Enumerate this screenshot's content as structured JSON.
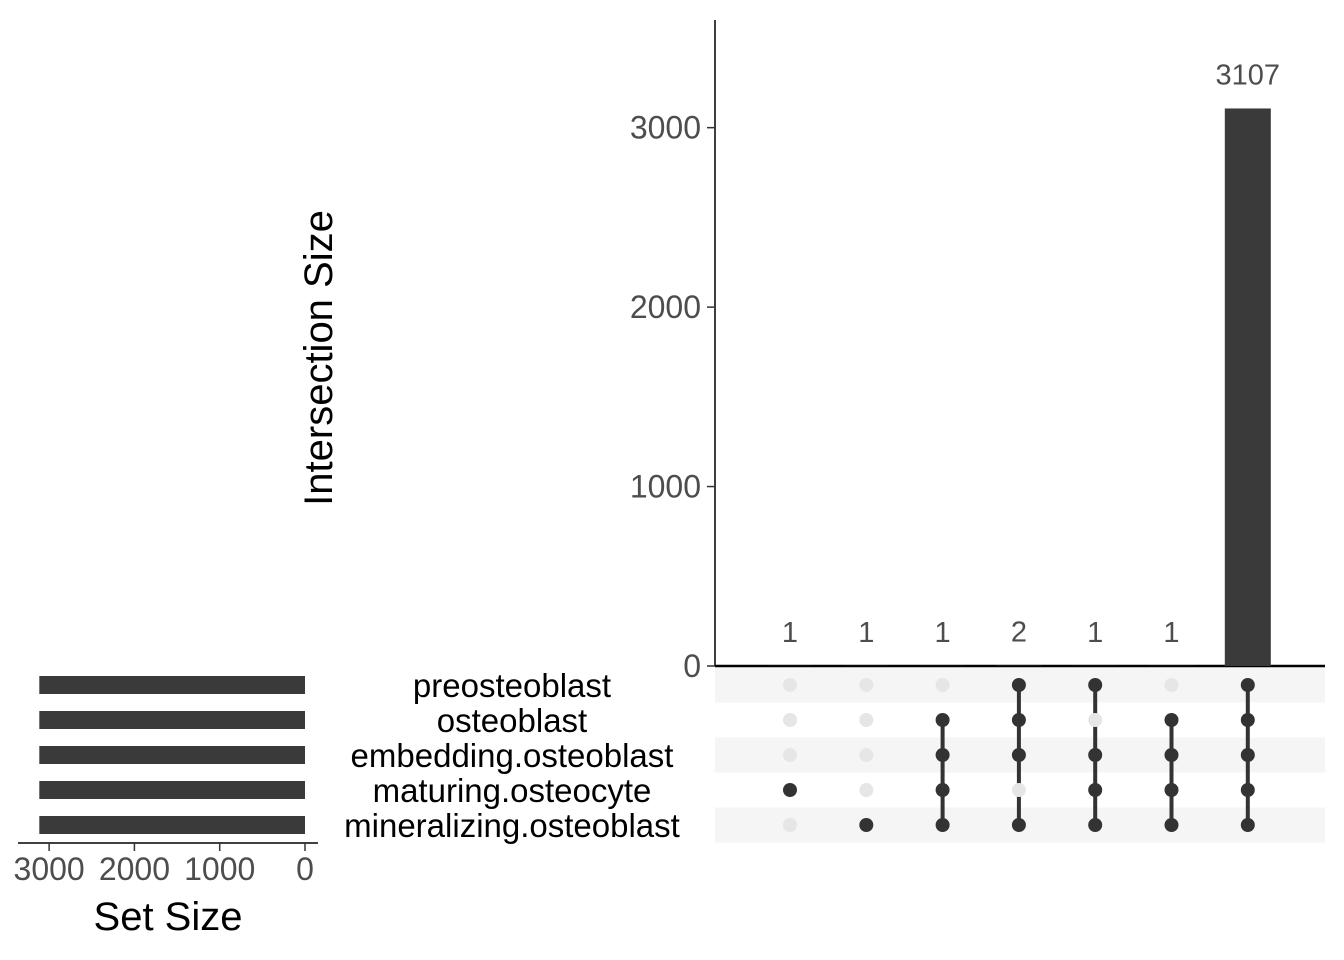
{
  "chart_data": {
    "type": "bar",
    "title": "",
    "ylabel": "Intersection Size",
    "ylim": [
      0,
      3600
    ],
    "yticks": [
      0,
      1000,
      2000,
      3000
    ],
    "sets": [
      {
        "name": "preosteoblast",
        "size": 3115
      },
      {
        "name": "osteoblast",
        "size": 3115
      },
      {
        "name": "embedding.osteoblast",
        "size": 3115
      },
      {
        "name": "maturing.osteocyte",
        "size": 3115
      },
      {
        "name": "mineralizing.osteoblast",
        "size": 3115
      }
    ],
    "set_size_label": "Set Size",
    "set_size_xlim": [
      0,
      3400
    ],
    "set_size_ticks": [
      3000,
      2000,
      1000,
      0
    ],
    "intersections": [
      {
        "members": [
          "maturing.osteocyte"
        ],
        "value": 1
      },
      {
        "members": [
          "mineralizing.osteoblast"
        ],
        "value": 1
      },
      {
        "members": [
          "osteoblast",
          "embedding.osteoblast",
          "maturing.osteocyte",
          "mineralizing.osteoblast"
        ],
        "value": 1
      },
      {
        "members": [
          "preosteoblast",
          "osteoblast",
          "embedding.osteoblast",
          "mineralizing.osteoblast"
        ],
        "value": 2
      },
      {
        "members": [
          "preosteoblast",
          "embedding.osteoblast",
          "maturing.osteocyte",
          "mineralizing.osteoblast"
        ],
        "value": 1
      },
      {
        "members": [
          "osteoblast",
          "embedding.osteoblast",
          "maturing.osteocyte",
          "mineralizing.osteoblast"
        ],
        "value": 1
      },
      {
        "members": [
          "preosteoblast",
          "osteoblast",
          "embedding.osteoblast",
          "maturing.osteocyte",
          "mineralizing.osteoblast"
        ],
        "value": 3107
      }
    ],
    "bar_color": "#3a3a3a",
    "dot_active_color": "#333333",
    "dot_inactive_color": "#e6e6e6",
    "stripe_color": "#f5f5f5"
  }
}
